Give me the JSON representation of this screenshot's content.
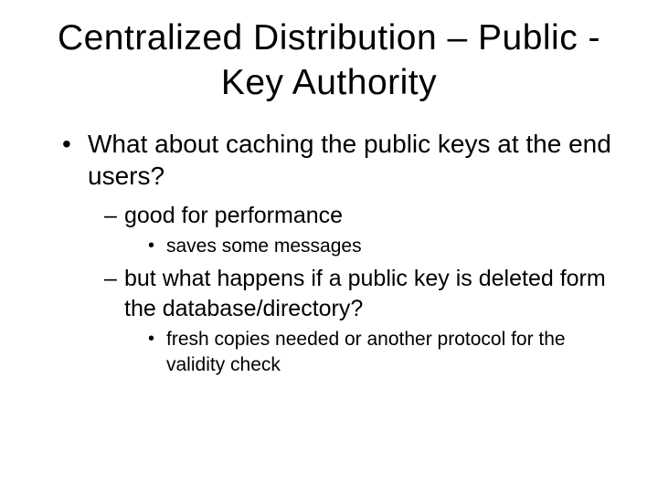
{
  "slide": {
    "title": "Centralized Distribution – Public -Key Authority",
    "bullets": [
      {
        "text": "What about caching the public keys at the end users?",
        "sub": [
          {
            "text": "good for performance",
            "sub": [
              {
                "text": "saves some messages"
              }
            ]
          },
          {
            "text": "but what happens if a public key is deleted form the database/directory?",
            "sub": [
              {
                "text": "fresh copies needed or another protocol for the validity check"
              }
            ]
          }
        ]
      }
    ]
  },
  "style": {
    "background_color": "#ffffff",
    "text_color": "#000000",
    "title_fontsize": 39,
    "level1_fontsize": 28,
    "level2_fontsize": 25,
    "level3_fontsize": 21,
    "font_family": "Arial"
  }
}
